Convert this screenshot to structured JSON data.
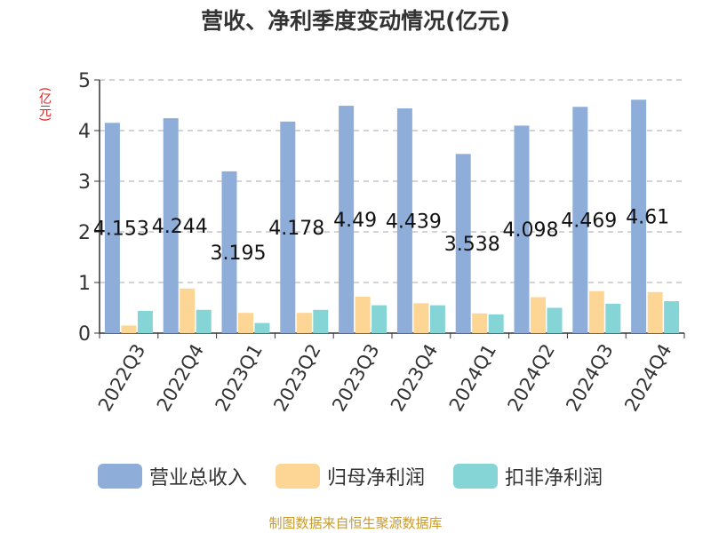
{
  "title": "营收、净利季度变动情况(亿元)",
  "unit_label": "(亿元)",
  "source_text": "制图数据来自恒生聚源数据库",
  "colors": {
    "revenue": "#8fadd9",
    "net_profit": "#fdd595",
    "deducted_profit": "#85d4d6",
    "axis": "#333333",
    "grid": "#bbbbbb",
    "unit": "#e0201f",
    "source": "#c99a2e"
  },
  "chart_data": {
    "type": "bar",
    "categories": [
      "2022Q3",
      "2022Q4",
      "2023Q1",
      "2023Q2",
      "2023Q3",
      "2023Q4",
      "2024Q1",
      "2024Q2",
      "2024Q3",
      "2024Q4"
    ],
    "series": [
      {
        "name": "营业总收入",
        "values": [
          4.153,
          4.244,
          3.195,
          4.178,
          4.49,
          4.439,
          3.538,
          4.098,
          4.469,
          4.61
        ],
        "labels": [
          "4.153",
          "4.244",
          "3.195",
          "4.178",
          "4.49",
          "4.439",
          "3.538",
          "4.098",
          "4.469",
          "4.61"
        ]
      },
      {
        "name": "归母净利润",
        "values": [
          0.15,
          0.88,
          0.4,
          0.4,
          0.72,
          0.59,
          0.39,
          0.71,
          0.83,
          0.81
        ]
      },
      {
        "name": "扣非净利润",
        "values": [
          0.44,
          0.46,
          0.2,
          0.46,
          0.55,
          0.55,
          0.37,
          0.5,
          0.58,
          0.63
        ]
      }
    ],
    "ylim": [
      0,
      5
    ],
    "yticks": [
      "0",
      "1",
      "2",
      "3",
      "4",
      "5"
    ],
    "grid": true,
    "legend_position": "bottom"
  }
}
